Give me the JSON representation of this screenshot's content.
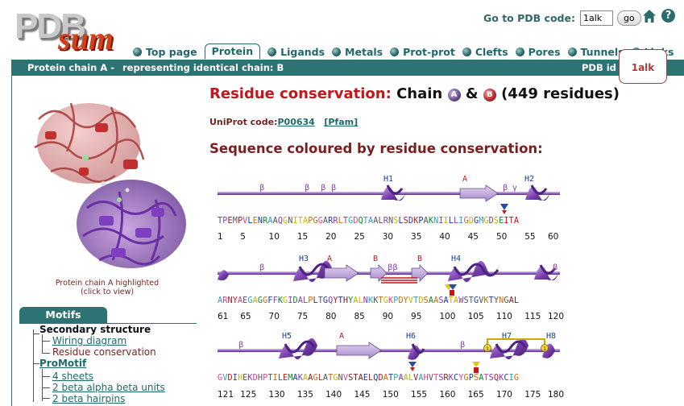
{
  "header": {
    "logo_top": "PDB",
    "logo_bottom": "sum",
    "goto_label": "Go to PDB code:",
    "goto_value": "1alk",
    "goto_button": "go"
  },
  "tabs": [
    {
      "label": "Top page",
      "active": false
    },
    {
      "label": "Protein",
      "active": true
    },
    {
      "label": "Ligands",
      "active": false
    },
    {
      "label": "Metals",
      "active": false
    },
    {
      "label": "Prot-prot",
      "active": false
    },
    {
      "label": "Clefts",
      "active": false
    },
    {
      "label": "Pores",
      "active": false
    },
    {
      "label": "Tunnels",
      "active": false
    },
    {
      "label": "Links",
      "active": false
    }
  ],
  "bar": {
    "chain": "Protein chain A   -",
    "representing": "representing identical chain: B",
    "pdb_id_label": "PDB id",
    "pdb_id": "1alk"
  },
  "left": {
    "caption_1": "Protein chain A highlighted",
    "caption_2": "(click to view)",
    "motifs_label": "Motifs",
    "tree": {
      "secondary_structure": "Secondary structure",
      "wiring_diagram": "Wiring diagram",
      "residue_conservation": "Residue conservation",
      "promotif": "ProMotif",
      "sheets": "4 sheets",
      "units": "2 beta alpha beta units",
      "hairpins": "2 beta hairpins"
    }
  },
  "main": {
    "title_red": "Residue conservation:",
    "title_chain": "Chain",
    "badge_a": "A",
    "amp": "&",
    "badge_b": "B",
    "title_count": "(449 residues)",
    "uniprot_label": "UniProt code:",
    "uniprot_code": "P00634",
    "pfam": "[Pfam]",
    "subtitle": "Sequence coloured by residue conservation:"
  },
  "rows": [
    {
      "sequence": "TPEMPVLENRAAQGNITAPGGARRLTGDQTAALRNSLSDKPAKNIILLIGDGMGDSEITA",
      "numbers": [
        "1",
        "5",
        "10",
        "15",
        "20",
        "25",
        "30",
        "35",
        "40",
        "45",
        "50",
        "55",
        "60"
      ],
      "sse_labels": [
        {
          "text": "H1",
          "color": "#1a3aa0"
        },
        {
          "text": "A",
          "color": "#c4161c"
        },
        {
          "text": "H2",
          "color": "#1a3aa0"
        },
        {
          "text": "β",
          "color": "#8a3bb0"
        },
        {
          "text": "γ",
          "color": "#8a3bb0"
        }
      ]
    },
    {
      "sequence": "ARNYAEGAGGFFKGIDALPLTGQYTHYALNKKTGKPDYVTDSAASATAWSTGVKTYNGAL",
      "numbers": [
        "61",
        "65",
        "70",
        "75",
        "80",
        "85",
        "90",
        "95",
        "100",
        "105",
        "110",
        "115",
        "120"
      ],
      "sse_labels": [
        {
          "text": "H3",
          "color": "#1a3aa0"
        },
        {
          "text": "A",
          "color": "#c4161c"
        },
        {
          "text": "B",
          "color": "#c4161c"
        },
        {
          "text": "B",
          "color": "#c4161c"
        },
        {
          "text": "H4",
          "color": "#1a3aa0"
        },
        {
          "text": "β",
          "color": "#8a3bb0"
        },
        {
          "text": "ββ",
          "color": "#8a3bb0"
        }
      ]
    },
    {
      "sequence": "GVDIHEKDHPTILEMAKAAGLATGNVSTAELQDATPAALVAHVTSRKCYGPSATSQKCIG",
      "numbers": [
        "121",
        "125",
        "130",
        "135",
        "140",
        "145",
        "150",
        "155",
        "160",
        "165",
        "170",
        "175",
        "180"
      ],
      "sse_labels": [
        {
          "text": "H5",
          "color": "#1a3aa0"
        },
        {
          "text": "A",
          "color": "#c4161c"
        },
        {
          "text": "H6",
          "color": "#1a3aa0"
        },
        {
          "text": "H7",
          "color": "#1a3aa0"
        },
        {
          "text": "H8",
          "color": "#1a3aa0"
        },
        {
          "text": "β",
          "color": "#8a3bb0"
        },
        {
          "text": "1",
          "color": "#333333"
        }
      ]
    }
  ],
  "colors": {
    "teal": "#2e7373",
    "red": "#c4161c",
    "maroon": "#7a1f1f",
    "helix": "#7a3fb0",
    "strand": "#b9a0d8"
  }
}
